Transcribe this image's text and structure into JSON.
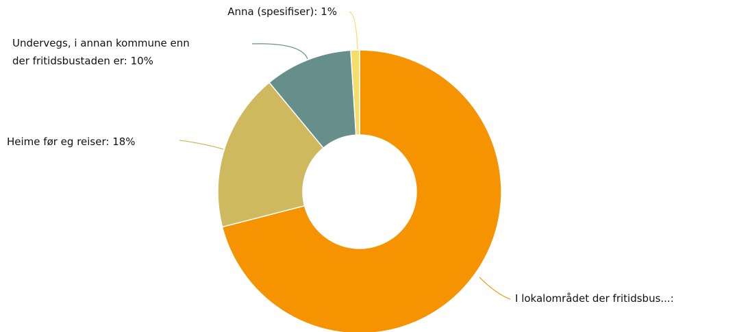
{
  "chart_data": {
    "type": "pie",
    "categories": [
      "I lokalområdet der fritidsbus...:",
      "Heime før eg reiser: 18%",
      "Undervegs, i annan kommune enn der fritidsbustaden er: 10%",
      "Anna (spesifiser): 1%"
    ],
    "values": [
      71,
      18,
      10,
      1
    ],
    "colors": [
      "#f59300",
      "#cfb95f",
      "#668f8b",
      "#f6dd6a"
    ],
    "donut": true
  }
}
